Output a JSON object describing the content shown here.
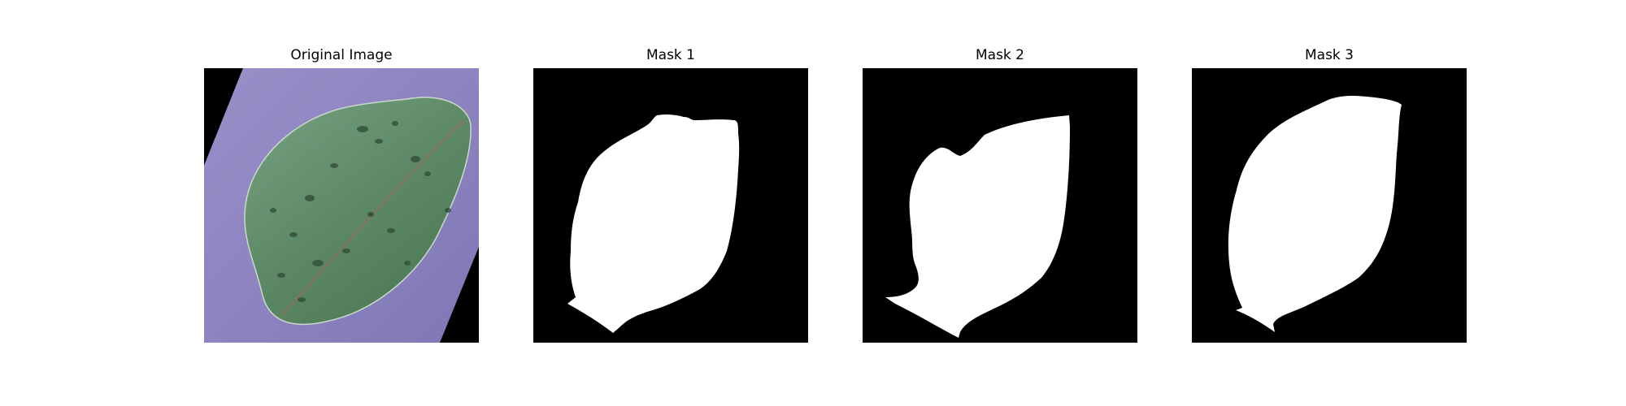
{
  "figure": {
    "panels": [
      {
        "title": "Original Image",
        "content": "photograph of a green leaf with dark spots on a rotated purple background square"
      },
      {
        "title": "Mask 1",
        "content": "binary segmentation mask, white leaf region on black"
      },
      {
        "title": "Mask 2",
        "content": "binary segmentation mask, white leaf region on black"
      },
      {
        "title": "Mask 3",
        "content": "binary segmentation mask, white leaf region on black"
      }
    ]
  },
  "colors": {
    "background": "#ffffff",
    "mask_background": "#000000",
    "mask_foreground": "#ffffff",
    "photo_background": "#8e84bf",
    "leaf": "#5f8a68"
  }
}
